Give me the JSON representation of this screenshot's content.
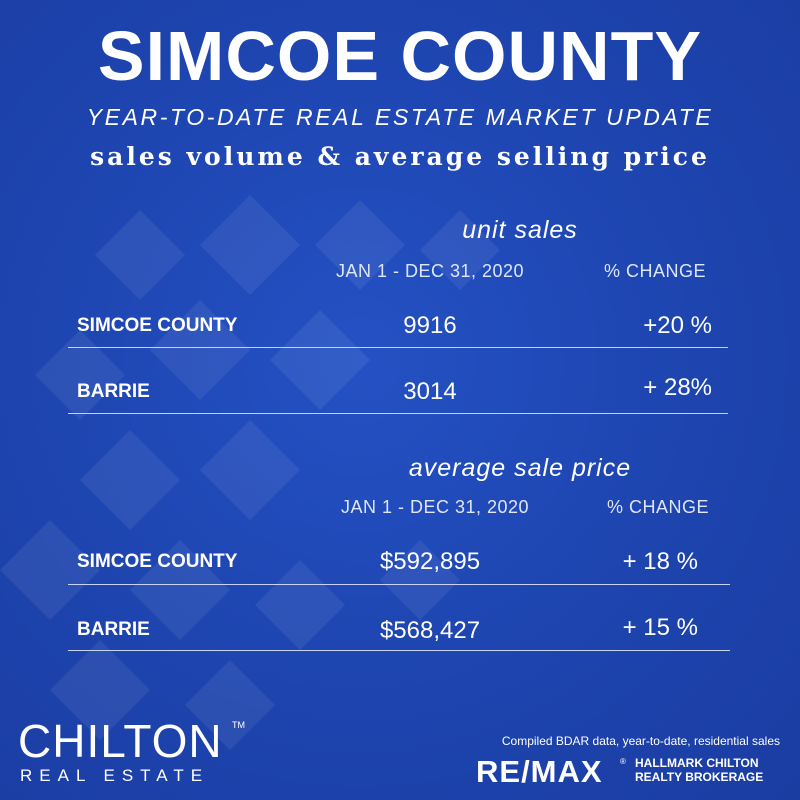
{
  "header": {
    "title": "SIMCOE COUNTY",
    "subtitle": "YEAR-TO-DATE REAL ESTATE MARKET UPDATE",
    "tagline": "sales volume & average selling price"
  },
  "unit_sales": {
    "section_title": "unit sales",
    "period_header": "JAN 1 - DEC 31,  2020",
    "change_header": "% CHANGE",
    "rows": [
      {
        "label": "SIMCOE COUNTY",
        "value": "9916",
        "change": "+20 %"
      },
      {
        "label": "BARRIE",
        "value": "3014",
        "change": "+ 28%"
      }
    ]
  },
  "average_price": {
    "section_title": "average sale price",
    "period_header": "JAN 1 - DEC 31, 2020",
    "change_header": "% CHANGE",
    "rows": [
      {
        "label": "SIMCOE COUNTY",
        "value": "$592,895",
        "change": "+ 18 %"
      },
      {
        "label": "BARRIE",
        "value": "$568,427",
        "change": "+ 15 %"
      }
    ]
  },
  "footer": {
    "logo_main": "CHILTON",
    "logo_tm": "TM",
    "logo_sub": "REAL ESTATE",
    "source_note": "Compiled BDAR data, year-to-date, residential sales",
    "remax": "RE/MAX",
    "remax_reg": "®",
    "brokerage_line1": "HALLMARK CHILTON",
    "brokerage_line2": "REALTY BROKERAGE"
  },
  "colors": {
    "background": "#1f45b0",
    "text": "#ffffff",
    "rule": "#c9d3ef"
  }
}
